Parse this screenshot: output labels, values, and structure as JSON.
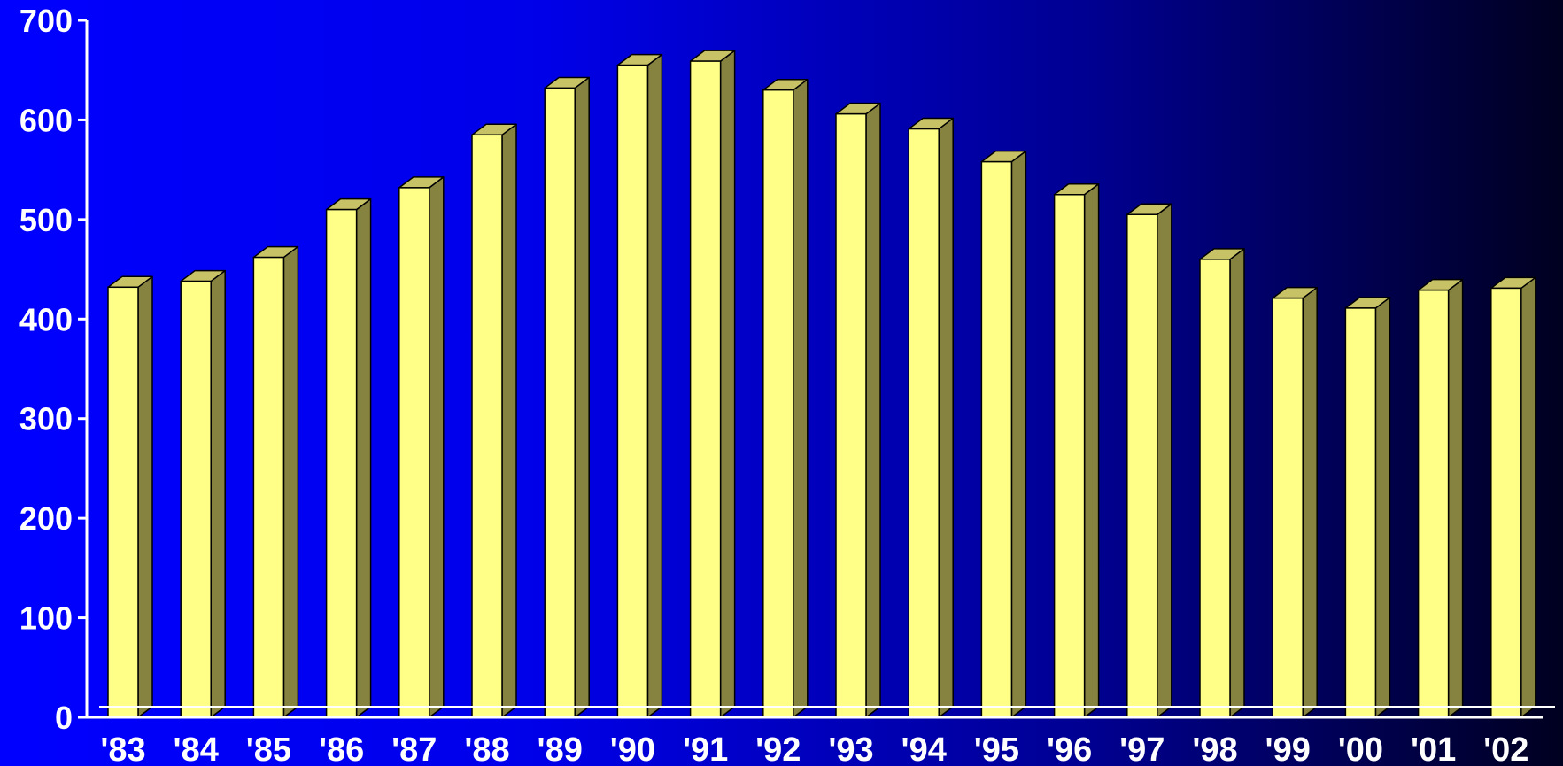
{
  "chart_data": {
    "type": "bar",
    "style": "3d-column",
    "categories": [
      "'83",
      "'84",
      "'85",
      "'86",
      "'87",
      "'88",
      "'89",
      "'90",
      "'91",
      "'92",
      "'93",
      "'94",
      "'95",
      "'96",
      "'97",
      "'98",
      "'99",
      "'00",
      "'01",
      "'02"
    ],
    "series": [
      {
        "values": [
          432,
          438,
          462,
          510,
          532,
          585,
          632,
          655,
          659,
          630,
          606,
          591,
          558,
          525,
          505,
          460,
          421,
          411,
          429,
          431
        ]
      }
    ],
    "title": "",
    "xlabel": "",
    "ylabel": "",
    "ylim": [
      0,
      700
    ],
    "yticks": [
      0,
      100,
      200,
      300,
      400,
      500,
      600,
      700
    ],
    "grid": false,
    "legend": "none",
    "colors": {
      "bar_front": "#ffff88",
      "bar_top": "#c8c266",
      "bar_side": "#86823f",
      "bar_outline": "#000000",
      "axis": "#ffffff",
      "text": "#ffffff",
      "background_left": "#0000ff",
      "background_right": "#000020"
    }
  }
}
